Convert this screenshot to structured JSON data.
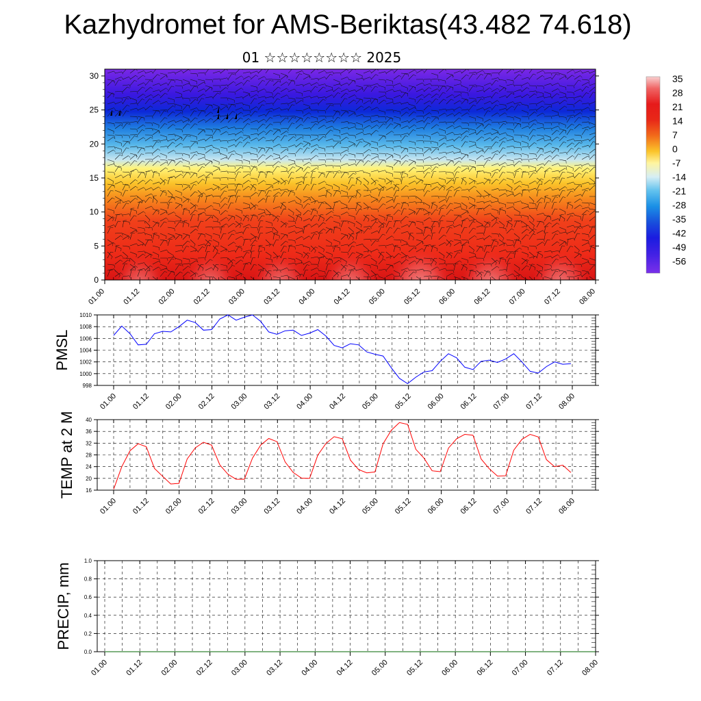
{
  "page": {
    "title": "Kazhydromet for AMS-Beriktas(43.482 74.618)",
    "subtitle": "01 ☆☆☆☆☆☆☆☆ 2025"
  },
  "chart_data": [
    {
      "type": "heatmap",
      "title": "",
      "xlabel": "",
      "ylabel": "",
      "x_ticks": [
        "01.00",
        "01.12",
        "02.00",
        "02.12",
        "03.00",
        "03.12",
        "04.00",
        "04.12",
        "05.00",
        "05.12",
        "06.00",
        "06.12",
        "07.00",
        "07.12",
        "08.00"
      ],
      "y_ticks": [
        0,
        5,
        10,
        15,
        20,
        25,
        30
      ],
      "ylim": [
        0,
        31
      ],
      "colorbar_labels": [
        "35",
        "28",
        "21",
        "14",
        "7",
        "0",
        "-7",
        "-14",
        "-21",
        "-28",
        "-35",
        "-42",
        "-49",
        "-56"
      ],
      "colorbar_range": [
        -60,
        38
      ],
      "colorscale": "temperature: blue/purple (cold, top) to red/pink (warm, bottom)",
      "overlay": "wind barbs"
    },
    {
      "type": "line",
      "ylabel": "PMSL",
      "ylim": [
        998,
        1010
      ],
      "y_ticks": [
        998,
        1000,
        1002,
        1004,
        1006,
        1008,
        1010
      ],
      "x_ticks": [
        "01.00",
        "01.12",
        "02.00",
        "02.12",
        "03.00",
        "03.12",
        "04.00",
        "04.12",
        "05.00",
        "05.12",
        "06.00",
        "06.12",
        "07.00",
        "07.12",
        "08.00"
      ],
      "color": "#0000ff",
      "series": [
        {
          "values": [
            1006.5,
            1008.1,
            1006.8,
            1004.9,
            1005.0,
            1006.8,
            1007.2,
            1007.1,
            1008.0,
            1009.1,
            1008.7,
            1007.4,
            1007.5,
            1009.3,
            1010.0,
            1009.1,
            1009.6,
            1010.0,
            1008.9,
            1007.1,
            1006.7,
            1007.3,
            1007.4,
            1006.5,
            1006.9,
            1007.5,
            1006.4,
            1004.8,
            1004.4,
            1005.1,
            1004.9,
            1003.7,
            1003.3,
            1003.0,
            1001.0,
            999.2,
            998.3,
            999.4,
            1000.3,
            1000.5,
            1002.1,
            1003.4,
            1002.7,
            1001.1,
            1000.7,
            1002.1,
            1002.3,
            1001.9,
            1002.5,
            1003.4,
            1002.0,
            1000.4,
            1000.1,
            1001.2,
            1002.0,
            1001.6,
            1001.7
          ]
        }
      ]
    },
    {
      "type": "line",
      "ylabel": "TEMP at 2 M",
      "ylim": [
        16,
        40
      ],
      "y_ticks": [
        16,
        20,
        24,
        28,
        32,
        36,
        40
      ],
      "x_ticks": [
        "01.00",
        "01.12",
        "02.00",
        "02.12",
        "03.00",
        "03.12",
        "04.00",
        "04.12",
        "05.00",
        "05.12",
        "06.00",
        "06.12",
        "07.00",
        "07.12",
        "08.00"
      ],
      "color": "#ff0000",
      "series": [
        {
          "values": [
            16.3,
            24.0,
            29.4,
            31.8,
            30.8,
            23.4,
            20.7,
            18.1,
            18.3,
            26.6,
            30.4,
            32.3,
            31.3,
            24.6,
            21.4,
            19.7,
            19.7,
            26.9,
            31.3,
            33.6,
            32.5,
            25.6,
            22.0,
            20.1,
            20.0,
            27.9,
            31.9,
            34.2,
            33.5,
            26.2,
            23.0,
            21.9,
            22.2,
            31.8,
            36.4,
            39.0,
            38.4,
            29.9,
            26.9,
            22.6,
            22.3,
            30.3,
            33.5,
            35.0,
            34.7,
            26.6,
            23.3,
            20.8,
            20.9,
            29.6,
            33.3,
            35.0,
            34.1,
            26.4,
            24.0,
            24.5,
            22.0
          ]
        }
      ]
    },
    {
      "type": "line",
      "ylabel": "PRECIP, mm",
      "ylim": [
        0,
        1.0
      ],
      "y_ticks": [
        "0.0",
        "0.2",
        "0.4",
        "0.6",
        "0.8",
        "1.0"
      ],
      "x_ticks": [
        "01.00",
        "01.12",
        "02.00",
        "02.12",
        "03.00",
        "03.12",
        "04.00",
        "04.12",
        "05.00",
        "05.12",
        "06.00",
        "06.12",
        "07.00",
        "07.12",
        "08.00"
      ],
      "color": "#006400",
      "series": [
        {
          "values": [
            0,
            0
          ]
        }
      ]
    }
  ]
}
